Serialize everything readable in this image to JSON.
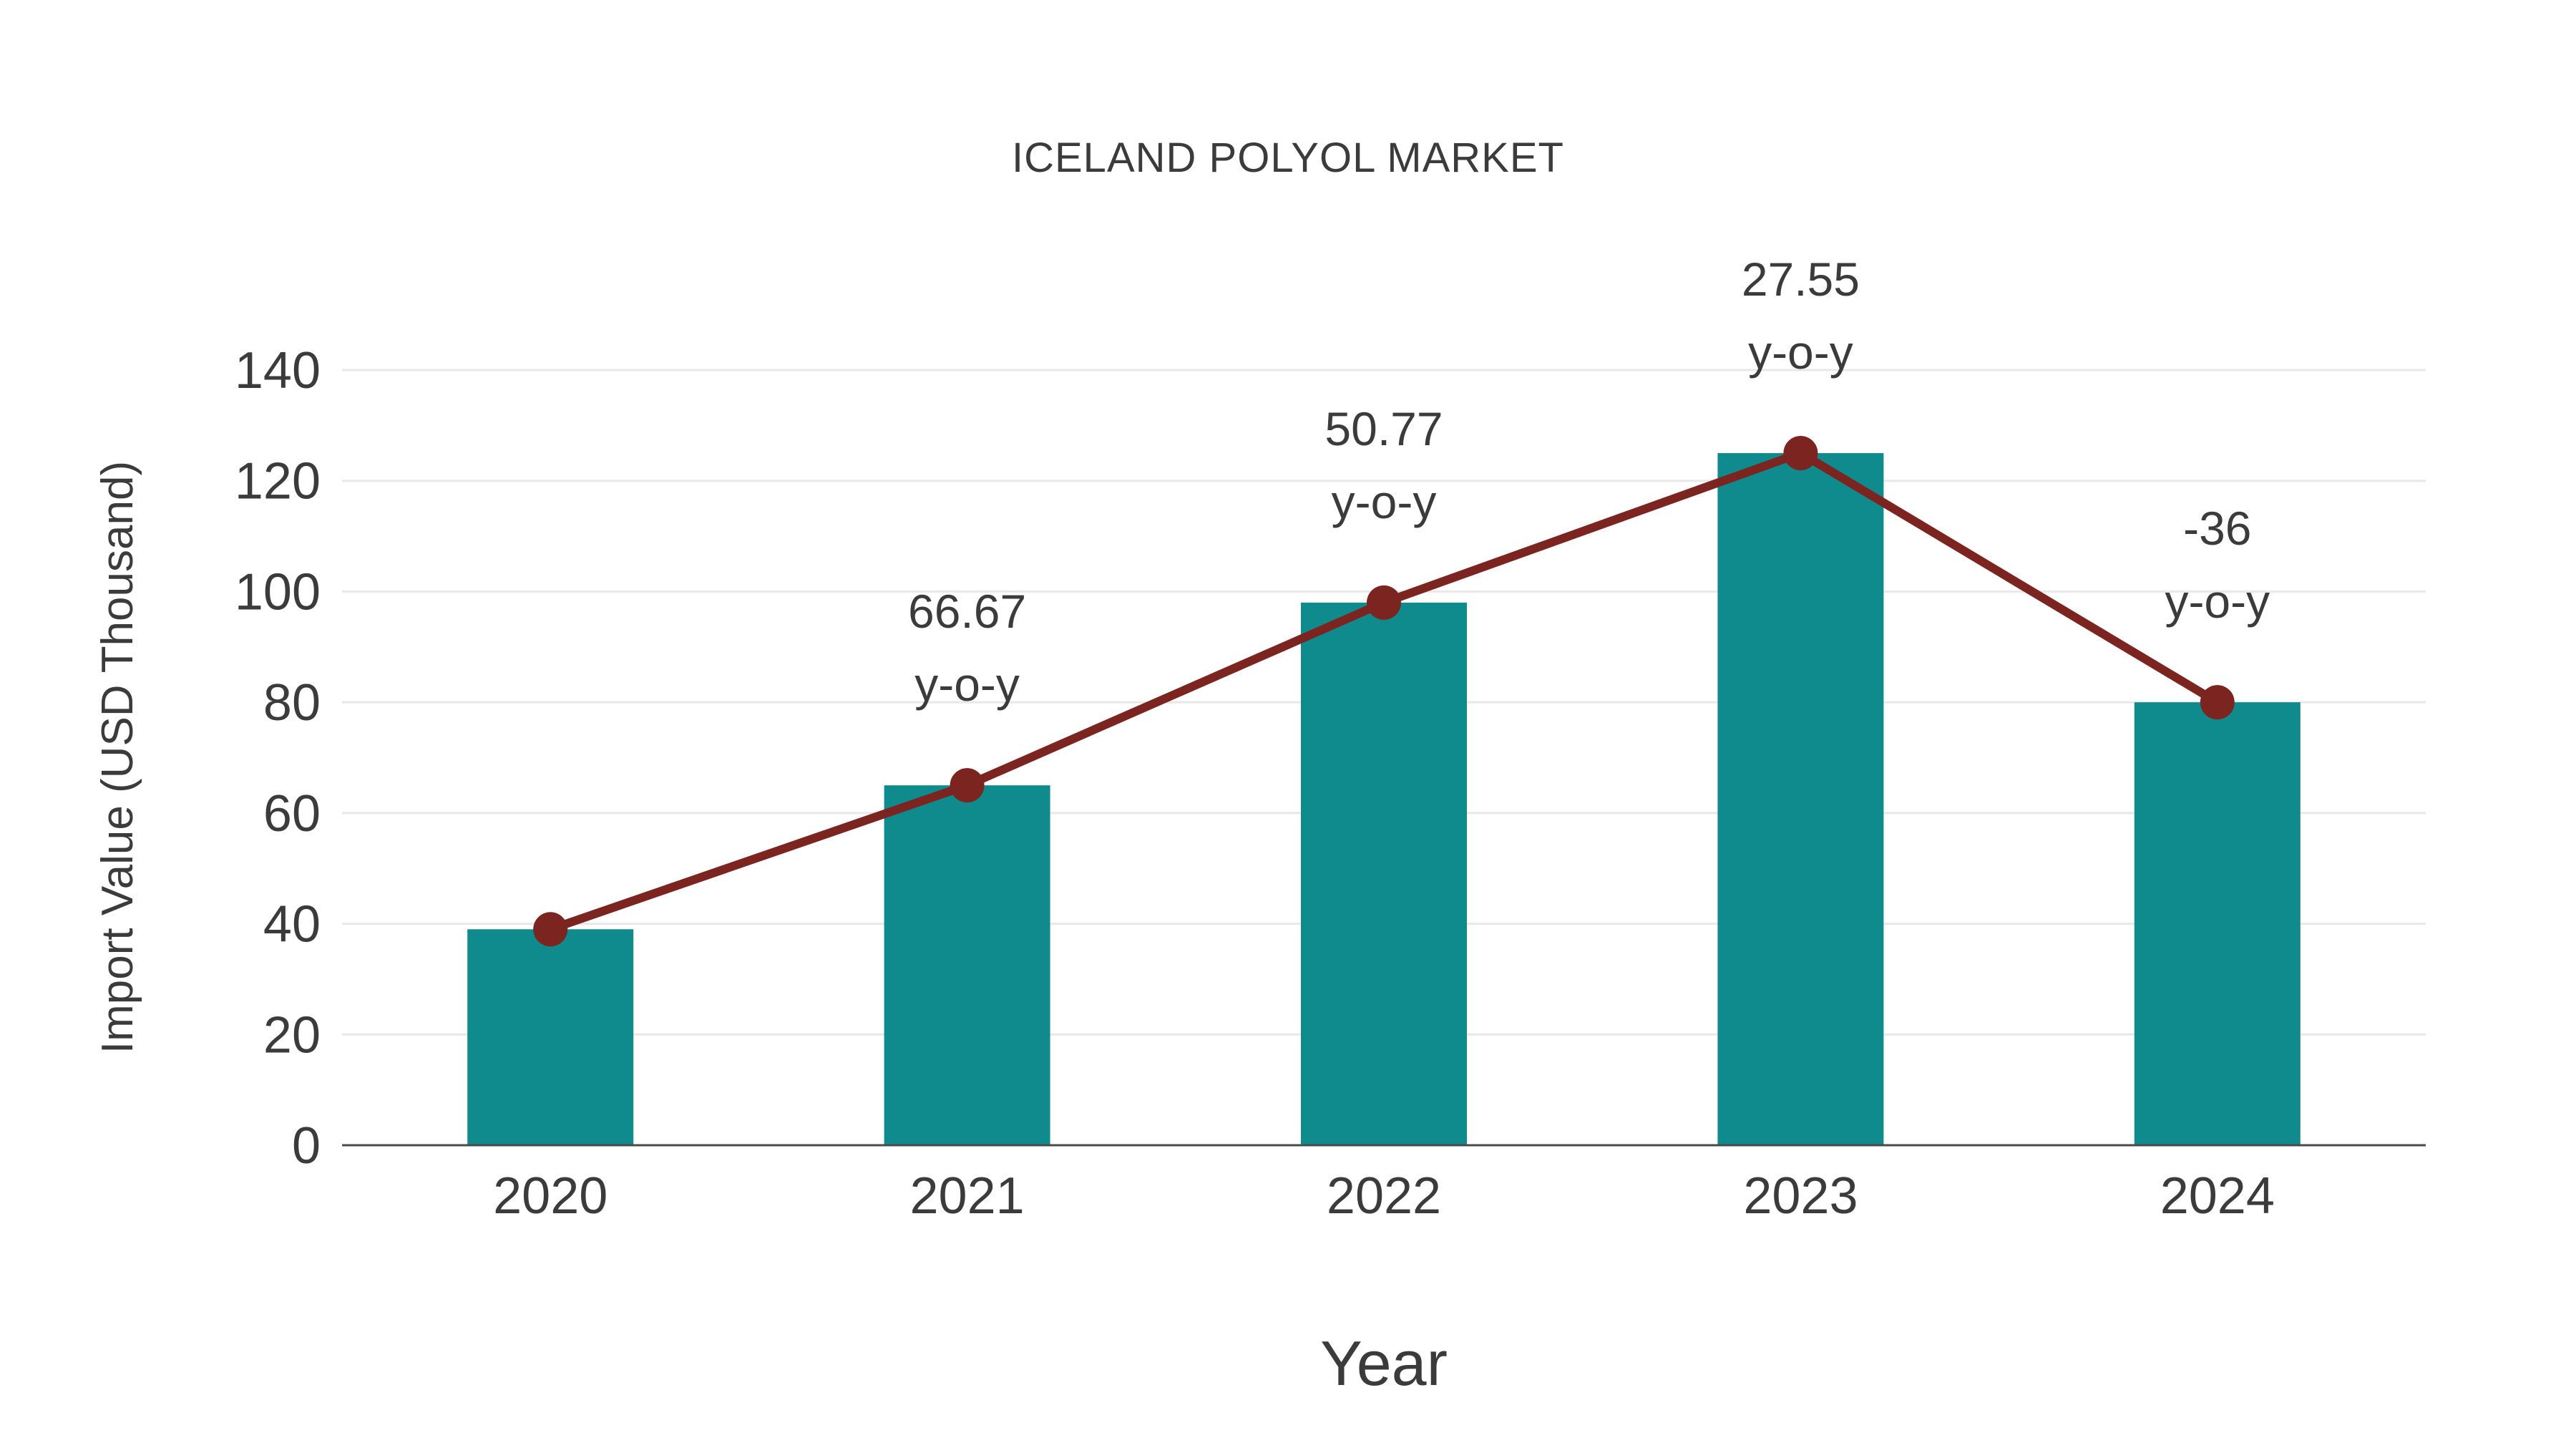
{
  "title": "ICELAND POLYOL MARKET",
  "colors": {
    "bar": "#0f8b8d",
    "line": "#7b2420",
    "marker": "#7b2420",
    "grid": "#e8e8e8",
    "axis_line": "#4a4a4a",
    "text": "#3b3b3b"
  },
  "chart_data": {
    "type": "bar",
    "title": "ICELAND POLYOL MARKET",
    "xlabel": "Year",
    "ylabel": "Import Value (USD Thousand)",
    "categories": [
      "2020",
      "2021",
      "2022",
      "2023",
      "2024"
    ],
    "series": [
      {
        "name": "Import Value",
        "type": "bar",
        "values": [
          39,
          65,
          98,
          125,
          80
        ]
      },
      {
        "name": "Trend",
        "type": "line",
        "values": [
          39,
          65,
          98,
          125,
          80
        ]
      }
    ],
    "annotations": [
      {
        "category": "2021",
        "line1": "66.67",
        "line2": "y-o-y"
      },
      {
        "category": "2022",
        "line1": "50.77",
        "line2": "y-o-y"
      },
      {
        "category": "2023",
        "line1": "27.55",
        "line2": "y-o-y"
      },
      {
        "category": "2024",
        "line1": "-36",
        "line2": "y-o-y"
      }
    ],
    "ylim": [
      0,
      140
    ],
    "yticks": [
      0,
      20,
      40,
      60,
      80,
      100,
      120,
      140
    ],
    "grid": true,
    "legend": false
  }
}
